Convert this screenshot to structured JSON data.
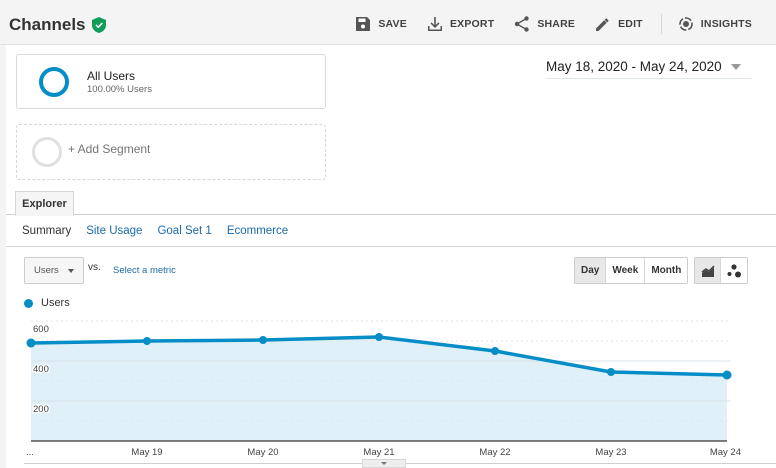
{
  "header": {
    "title": "Channels",
    "verified_icon": "shield-check-icon",
    "toolbar": [
      {
        "label": "SAVE",
        "icon": "save-icon"
      },
      {
        "label": "EXPORT",
        "icon": "export-icon"
      },
      {
        "label": "SHARE",
        "icon": "share-icon"
      },
      {
        "label": "EDIT",
        "icon": "edit-icon"
      },
      {
        "label": "INSIGHTS",
        "icon": "insights-icon"
      }
    ]
  },
  "segments": {
    "active": {
      "name": "All Users",
      "sub": "100.00% Users",
      "color": "#058dc7"
    },
    "add_label": "+ Add Segment"
  },
  "date_range": "May 18, 2020 - May 24, 2020",
  "tabs": {
    "primary": "Explorer",
    "sub": [
      "Summary",
      "Site Usage",
      "Goal Set 1",
      "Ecommerce"
    ],
    "active_sub": "Summary"
  },
  "metric_controls": {
    "metric": "Users",
    "vs_label": "vs.",
    "select_metric": "Select a metric",
    "periods": [
      "Day",
      "Week",
      "Month"
    ],
    "active_period": "Day",
    "chart_types": [
      "line-chart-icon",
      "motion-chart-icon"
    ]
  },
  "legend": {
    "label": "Users",
    "color": "#058dc7"
  },
  "chart_data": {
    "type": "area",
    "title": "",
    "series": [
      {
        "name": "Users",
        "values": [
          490,
          500,
          505,
          520,
          450,
          345,
          330
        ],
        "color": "#058dc7"
      }
    ],
    "categories": [
      "May 18",
      "May 19",
      "May 20",
      "May 21",
      "May 22",
      "May 23",
      "May 24"
    ],
    "x_tick_labels": [
      "...",
      "May 19",
      "May 20",
      "May 21",
      "May 22",
      "May 23",
      "May 24"
    ],
    "y_tick_labels": [
      "600",
      "400",
      "200"
    ],
    "ylim": [
      0,
      600
    ],
    "xlabel": "",
    "ylabel": "",
    "grid": true,
    "legend_position": "top-left"
  }
}
